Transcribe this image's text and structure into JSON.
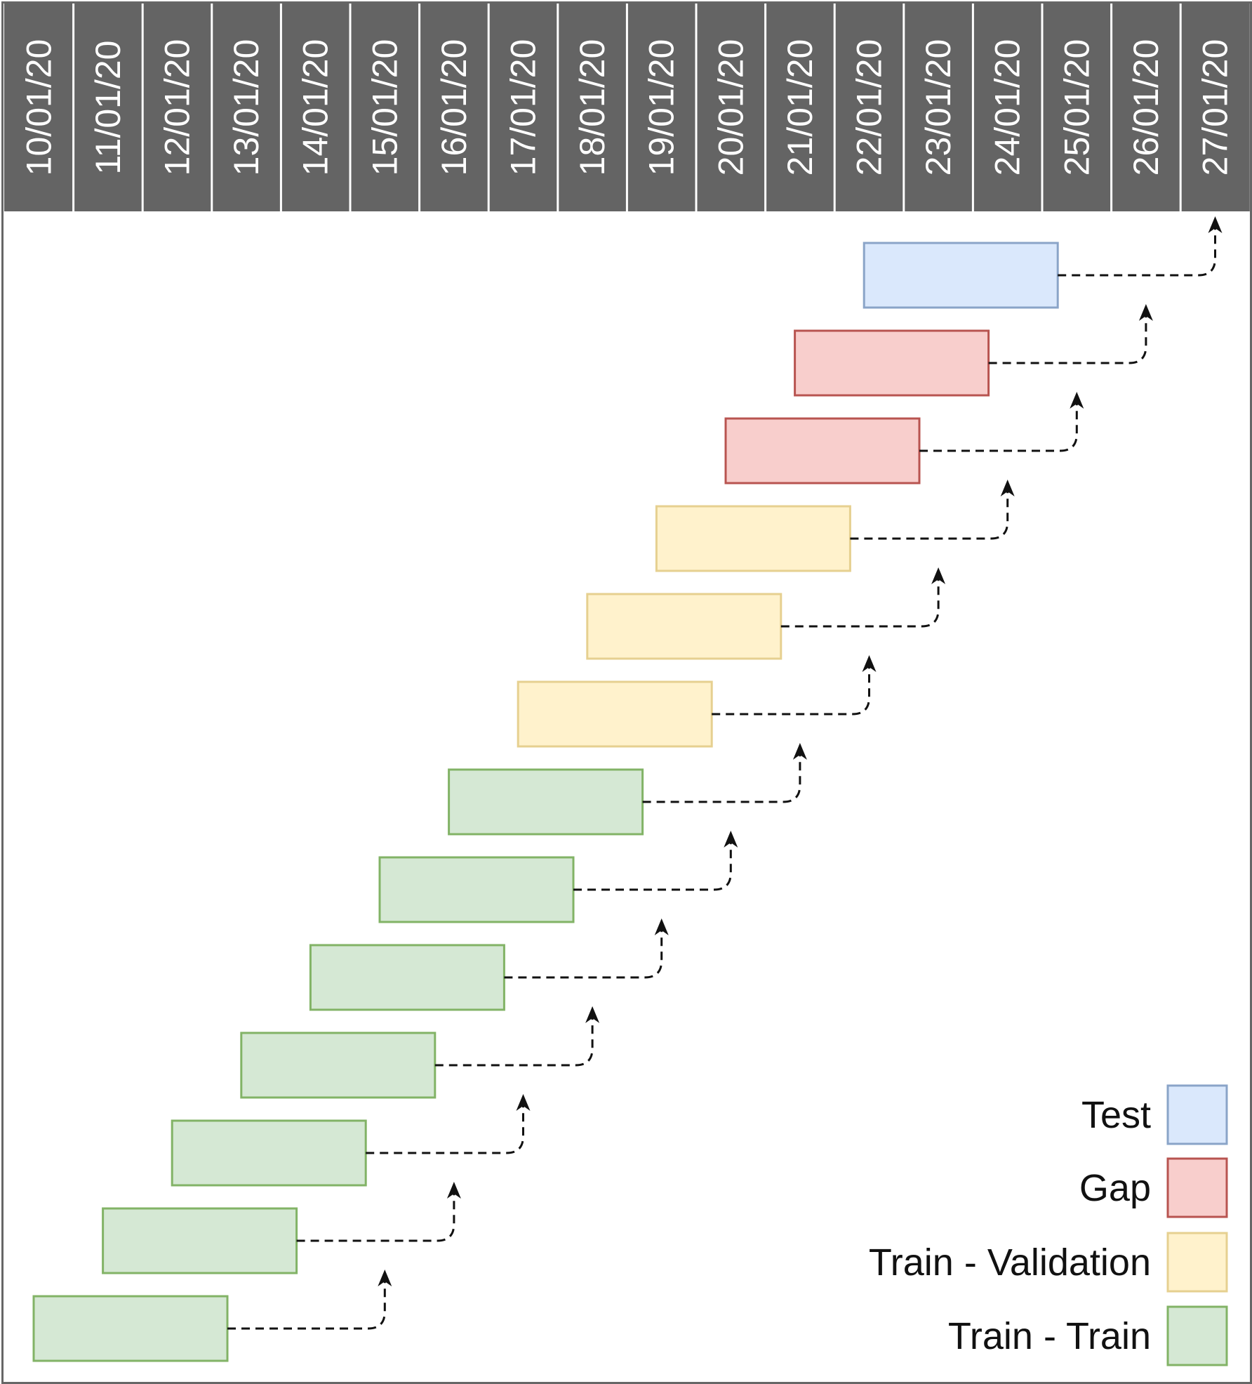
{
  "dates": [
    "10/01/20",
    "11/01/20",
    "12/01/20",
    "13/01/20",
    "14/01/20",
    "15/01/20",
    "16/01/20",
    "17/01/20",
    "18/01/20",
    "19/01/20",
    "20/01/20",
    "21/01/20",
    "22/01/20",
    "23/01/20",
    "24/01/20",
    "25/01/20",
    "26/01/20",
    "27/01/20"
  ],
  "categories": {
    "test": {
      "label": "Test",
      "fill": "#dae8fc",
      "stroke": "#8aa4c8"
    },
    "gap": {
      "label": "Gap",
      "fill": "#f8cecc",
      "stroke": "#b85450"
    },
    "tv": {
      "label": "Train - Validation",
      "fill": "#fff2cc",
      "stroke": "#e6d090"
    },
    "tt": {
      "label": "Train - Train",
      "fill": "#d5e8d4",
      "stroke": "#82b366"
    }
  },
  "legend_order": [
    "test",
    "gap",
    "tv",
    "tt"
  ],
  "header_color": "#646464",
  "rows": [
    {
      "category": "test",
      "start_date": "22/01/20",
      "end_date": "24/01/20",
      "arrow_to": "27/01/20"
    },
    {
      "category": "gap",
      "start_date": "21/01/20",
      "end_date": "23/01/20",
      "arrow_to": "26/01/20"
    },
    {
      "category": "gap",
      "start_date": "20/01/20",
      "end_date": "22/01/20",
      "arrow_to": "25/01/20"
    },
    {
      "category": "tv",
      "start_date": "19/01/20",
      "end_date": "21/01/20",
      "arrow_to": "24/01/20"
    },
    {
      "category": "tv",
      "start_date": "18/01/20",
      "end_date": "20/01/20",
      "arrow_to": "23/01/20"
    },
    {
      "category": "tv",
      "start_date": "17/01/20",
      "end_date": "19/01/20",
      "arrow_to": "22/01/20"
    },
    {
      "category": "tt",
      "start_date": "16/01/20",
      "end_date": "18/01/20",
      "arrow_to": "21/01/20"
    },
    {
      "category": "tt",
      "start_date": "15/01/20",
      "end_date": "17/01/20",
      "arrow_to": "20/01/20"
    },
    {
      "category": "tt",
      "start_date": "14/01/20",
      "end_date": "16/01/20",
      "arrow_to": "19/01/20"
    },
    {
      "category": "tt",
      "start_date": "13/01/20",
      "end_date": "15/01/20",
      "arrow_to": "18/01/20"
    },
    {
      "category": "tt",
      "start_date": "12/01/20",
      "end_date": "14/01/20",
      "arrow_to": "17/01/20"
    },
    {
      "category": "tt",
      "start_date": "11/01/20",
      "end_date": "13/01/20",
      "arrow_to": "16/01/20"
    },
    {
      "category": "tt",
      "start_date": "10/01/20",
      "end_date": "12/01/20",
      "arrow_to": "15/01/20"
    }
  ]
}
